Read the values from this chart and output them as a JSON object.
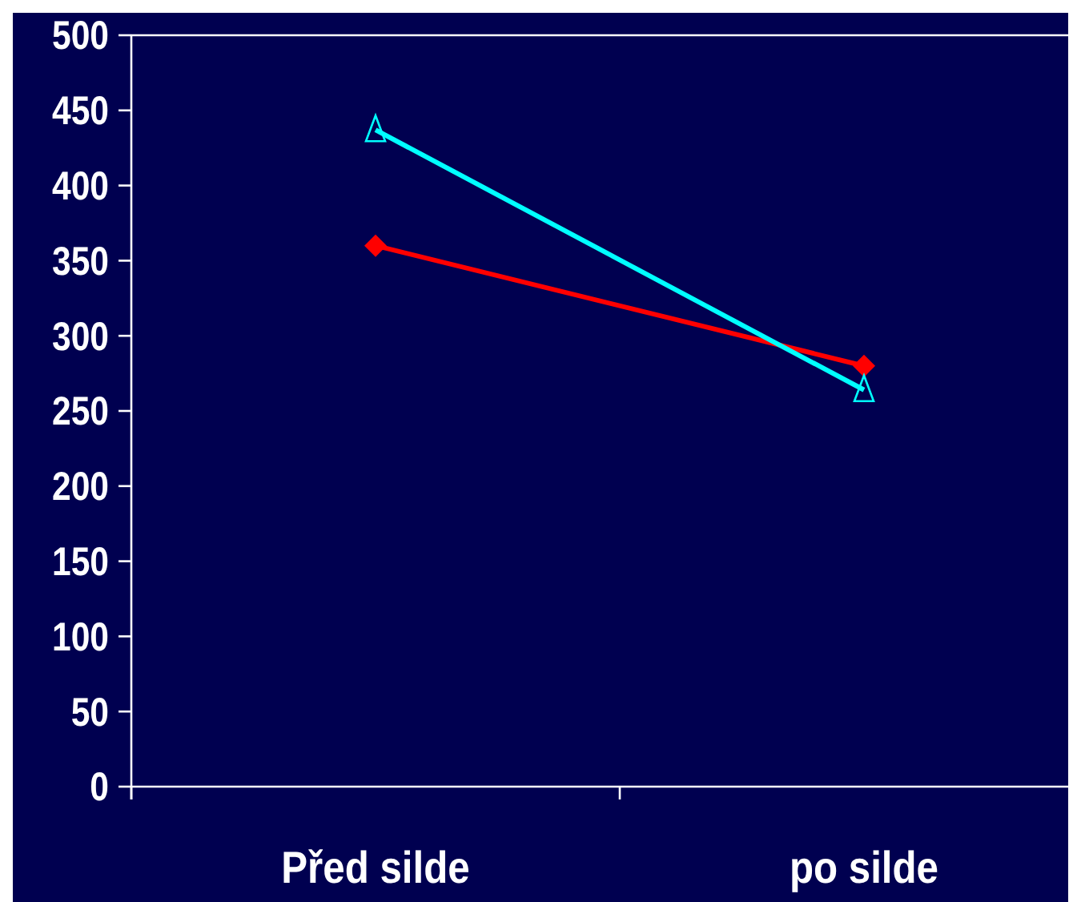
{
  "chart_data": {
    "type": "line",
    "categories": [
      "Před silde",
      "po silde"
    ],
    "series": [
      {
        "color": "#ff0000",
        "values": [
          360,
          280
        ],
        "marker": "diamond"
      },
      {
        "color": "#00ffff",
        "values": [
          437,
          264
        ],
        "marker": "triangle"
      }
    ],
    "ylim": [
      0,
      500
    ],
    "yticks": [
      0,
      50,
      100,
      150,
      200,
      250,
      300,
      350,
      400,
      450,
      500
    ],
    "grid": false
  }
}
